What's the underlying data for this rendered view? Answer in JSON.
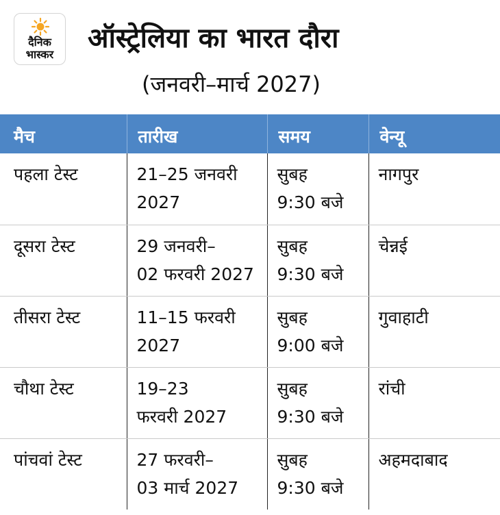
{
  "brand": {
    "line1": "दैनिक",
    "line2": "भास्कर"
  },
  "title": "ऑस्ट्रेलिया का भारत दौरा",
  "subtitle": "(जनवरी–मार्च 2027)",
  "colors": {
    "header_bg": "#4d86c6",
    "header_text": "#ffffff",
    "logo_sun": "#f5a623"
  },
  "table": {
    "headers": [
      "मैच",
      "तारीख",
      "समय",
      "वेन्यू"
    ],
    "rows": [
      {
        "match": "पहला टेस्ट",
        "date": "21–25 जनवरी\n2027",
        "time": "सुबह\n9:30 बजे",
        "venue": "नागपुर"
      },
      {
        "match": "दूसरा टेस्ट",
        "date": "29 जनवरी–\n02 फरवरी 2027",
        "time": "सुबह\n9:30 बजे",
        "venue": "चेन्नई"
      },
      {
        "match": "तीसरा टेस्ट",
        "date": "11–15 फरवरी\n2027",
        "time": "सुबह\n9:00 बजे",
        "venue": "गुवाहाटी"
      },
      {
        "match": "चौथा टेस्ट",
        "date": "19–23\nफरवरी 2027",
        "time": "सुबह\n9:30 बजे",
        "venue": "रांची"
      },
      {
        "match": "पांचवां टेस्ट",
        "date": "27 फरवरी–\n03 मार्च 2027",
        "time": "सुबह\n9:30 बजे",
        "venue": "अहमदाबाद"
      }
    ]
  }
}
